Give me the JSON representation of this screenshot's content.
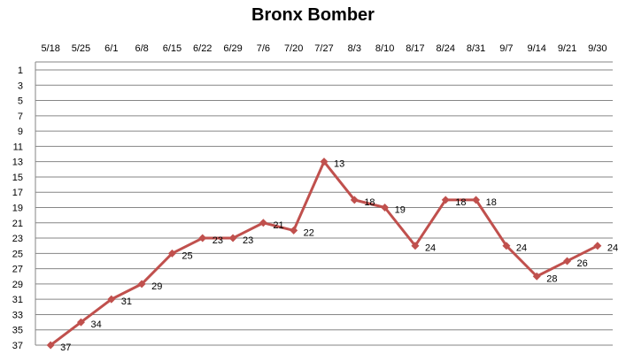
{
  "chart_data": {
    "type": "line",
    "title": "Bronx Bomber",
    "xlabel": "",
    "ylabel": "",
    "categories": [
      "5/18",
      "5/25",
      "6/1",
      "6/8",
      "6/15",
      "6/22",
      "6/29",
      "7/6",
      "7/20",
      "7/27",
      "8/3",
      "8/10",
      "8/17",
      "8/24",
      "8/31",
      "9/7",
      "9/14",
      "9/21",
      "9/30"
    ],
    "series": [
      {
        "values": [
          37,
          34,
          31,
          29,
          25,
          23,
          23,
          21,
          22,
          13,
          18,
          19,
          24,
          18,
          18,
          24,
          28,
          26,
          24
        ]
      }
    ],
    "y_axis": {
      "min": 1,
      "max": 37,
      "step": 2,
      "reversed": true,
      "tick_labels": [
        "1",
        "3",
        "5",
        "7",
        "9",
        "11",
        "13",
        "15",
        "17",
        "19",
        "21",
        "23",
        "25",
        "27",
        "29",
        "31",
        "33",
        "35",
        "37"
      ]
    },
    "x_axis_position": "top",
    "grid": true,
    "data_labels": true,
    "colors": {
      "series": "#C0504D",
      "grid": "#868686"
    }
  }
}
